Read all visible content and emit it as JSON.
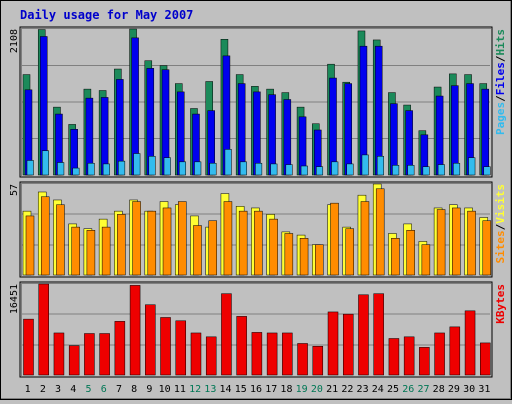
{
  "chart_data": {
    "type": "bar",
    "title": "Daily usage for May 2007",
    "categories": [
      "1",
      "2",
      "3",
      "4",
      "5",
      "6",
      "7",
      "8",
      "9",
      "10",
      "11",
      "12",
      "13",
      "14",
      "15",
      "16",
      "17",
      "18",
      "19",
      "20",
      "21",
      "22",
      "23",
      "24",
      "25",
      "26",
      "27",
      "28",
      "29",
      "30",
      "31"
    ],
    "weekend_days": [
      "5",
      "6",
      "12",
      "13",
      "19",
      "20",
      "26",
      "27"
    ],
    "colors": {
      "hits": "#1b8a5a",
      "files": "#0000ee",
      "pages": "#33bbee",
      "visits": "#ffff33",
      "sites": "#ff8c00",
      "kbytes": "#ee0000",
      "weekday_label": "#000000",
      "weekend_label": "#007755"
    },
    "panels": [
      {
        "name": "hits-files-pages",
        "ytick": "2108",
        "ymax": 2108,
        "legend": [
          "Pages",
          "/",
          "Files",
          "/",
          "Hits"
        ],
        "series": [
          {
            "name": "Hits",
            "values": [
              1450,
              2100,
              980,
              730,
              1240,
              1220,
              1530,
              2108,
              1650,
              1580,
              1320,
              960,
              1350,
              1960,
              1450,
              1280,
              1240,
              1190,
              980,
              740,
              1600,
              1340,
              2080,
              1950,
              1190,
              1010,
              640,
              1270,
              1460,
              1450,
              1320
            ]
          },
          {
            "name": "Files",
            "values": [
              1230,
              2000,
              880,
              660,
              1110,
              1120,
              1380,
              1980,
              1540,
              1520,
              1200,
              880,
              930,
              1720,
              1320,
              1200,
              1160,
              1090,
              840,
              650,
              1400,
              1320,
              1860,
              1860,
              1030,
              930,
              580,
              1140,
              1290,
              1320,
              1240
            ]
          },
          {
            "name": "Pages",
            "values": [
              210,
              350,
              180,
              100,
              170,
              160,
              200,
              310,
              270,
              250,
              190,
              190,
              170,
              370,
              190,
              170,
              160,
              150,
              130,
              120,
              190,
              160,
              290,
              270,
              140,
              140,
              120,
              150,
              170,
              250,
              120
            ]
          }
        ]
      },
      {
        "name": "visits-sites",
        "ytick": "57",
        "ymax": 57,
        "legend": [
          "Sites",
          "/",
          "Visits"
        ],
        "series": [
          {
            "name": "Visits",
            "values": [
              40,
              52,
              47,
              32,
              29,
              35,
              40,
              47,
              40,
              46,
              44,
              37,
              30,
              51,
              43,
              42,
              38,
              27,
              25,
              19,
              44,
              30,
              50,
              57,
              26,
              32,
              21,
              42,
              44,
              42,
              36
            ]
          },
          {
            "name": "Sites",
            "values": [
              37,
              49,
              44,
              30,
              28,
              30,
              38,
              46,
              40,
              42,
              46,
              31,
              34,
              46,
              40,
              40,
              35,
              26,
              23,
              19,
              45,
              29,
              46,
              54,
              23,
              28,
              19,
              41,
              42,
              40,
              34
            ]
          }
        ]
      },
      {
        "name": "kbytes",
        "ytick": "16451",
        "ymax": 16451,
        "legend": [
          "KBytes"
        ],
        "series": [
          {
            "name": "KBytes",
            "values": [
              10100,
              16451,
              7600,
              5300,
              7500,
              7500,
              9700,
              16200,
              12700,
              10400,
              9800,
              7600,
              6900,
              14700,
              10600,
              7700,
              7600,
              7600,
              5700,
              5200,
              11400,
              11000,
              14500,
              14700,
              6600,
              6900,
              5000,
              7600,
              8700,
              11600,
              5800
            ]
          }
        ]
      }
    ]
  }
}
